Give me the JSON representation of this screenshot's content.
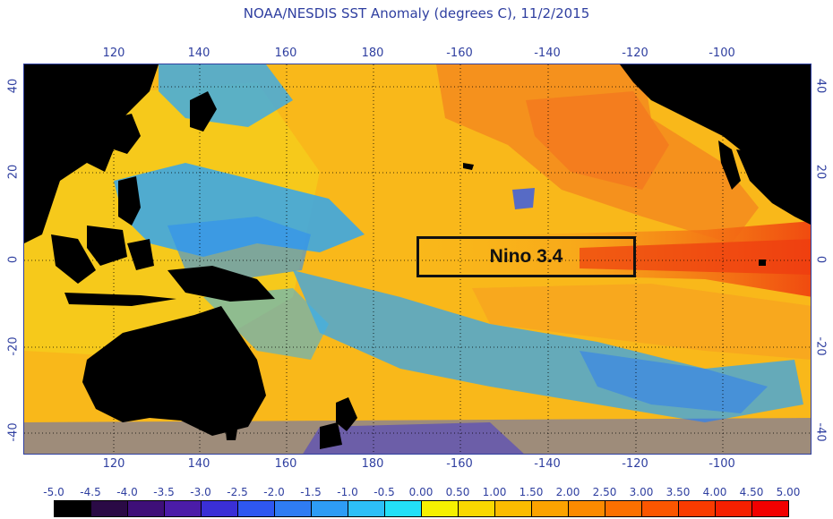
{
  "title": "NOAA/NESDIS SST Anomaly (degrees C), 11/2/2015",
  "axes": {
    "lon_ticks": [
      "120",
      "140",
      "160",
      "180",
      "-160",
      "-140",
      "-120",
      "-100"
    ],
    "lat_ticks": [
      "40",
      "20",
      "0",
      "-20",
      "-40"
    ]
  },
  "region": {
    "label": "Nino 3.4",
    "lat_range": [
      -5,
      5
    ],
    "lon_range": [
      -170,
      -120
    ]
  },
  "colorbar": {
    "labels": [
      "-5.0",
      "-4.5",
      "-4.0",
      "-3.5",
      "-3.0",
      "-2.5",
      "-2.0",
      "-1.5",
      "-1.0",
      "-0.5",
      "0.00",
      "0.50",
      "1.00",
      "1.50",
      "2.00",
      "2.50",
      "3.00",
      "3.50",
      "4.00",
      "4.50",
      "5.00"
    ],
    "colors": [
      "#000000",
      "#2a0a45",
      "#3e0f78",
      "#4b1ca8",
      "#3a2fd6",
      "#2e57f0",
      "#2f7cf3",
      "#2e9cf5",
      "#2dbff7",
      "#23e0f7",
      "#f6f100",
      "#f9d800",
      "#fbbc00",
      "#fca300",
      "#fc8a00",
      "#fc7000",
      "#fb5600",
      "#f93b00",
      "#f62000",
      "#f20000"
    ]
  },
  "colors": {
    "ocean_warm": "#f9b81a",
    "ocean_hot": "#f57a1a",
    "ocean_cool": "#33a6ef",
    "land": "#000000",
    "grid": "#000000",
    "axis_text": "#2f3fa0"
  }
}
